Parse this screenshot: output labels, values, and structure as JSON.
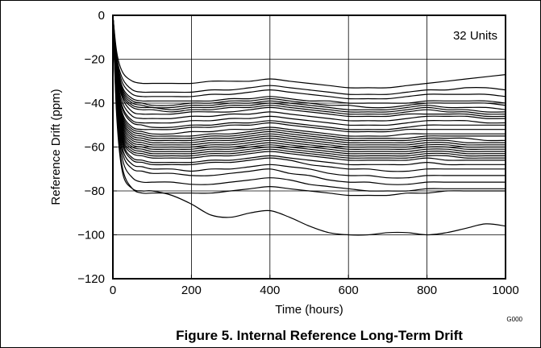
{
  "figure_caption": "Figure 5. Internal Reference Long-Term Drift",
  "graphic_code": "G000",
  "colors": {
    "line": "#000000",
    "grid": "#000000",
    "background": "#ffffff"
  },
  "chart_data": {
    "type": "line",
    "title": "",
    "xlabel": "Time (hours)",
    "ylabel": "Reference Drift (ppm)",
    "xlim": [
      0,
      1000
    ],
    "ylim": [
      -120,
      0
    ],
    "xticks": [
      0,
      200,
      400,
      600,
      800,
      1000
    ],
    "yticks": [
      0,
      -20,
      -40,
      -60,
      -80,
      -100,
      -120
    ],
    "grid": true,
    "legend": "none",
    "annotations": [
      {
        "text": "32 Units",
        "placement": "top-right"
      }
    ],
    "x": [
      0,
      10,
      25,
      50,
      75,
      100,
      150,
      200,
      250,
      300,
      350,
      400,
      450,
      500,
      550,
      600,
      650,
      700,
      750,
      800,
      850,
      900,
      950,
      1000
    ],
    "series": [
      {
        "values": [
          0,
          -17,
          -26,
          -30,
          -31,
          -31,
          -31,
          -31,
          -30,
          -30,
          -30,
          -29,
          -30,
          -31,
          -32,
          -33,
          -33,
          -33,
          -32,
          -31,
          -30,
          -29,
          -28,
          -27
        ]
      },
      {
        "values": [
          0,
          -19,
          -29,
          -34,
          -35,
          -35,
          -35,
          -35,
          -34,
          -34,
          -33,
          -32,
          -33,
          -34,
          -35,
          -36,
          -36,
          -36,
          -35,
          -34,
          -34,
          -33,
          -33,
          -34
        ]
      },
      {
        "values": [
          0,
          -20,
          -31,
          -36,
          -37,
          -37,
          -37,
          -37,
          -36,
          -36,
          -35,
          -34,
          -35,
          -36,
          -37,
          -38,
          -38,
          -38,
          -37,
          -36,
          -36,
          -36,
          -36,
          -37
        ]
      },
      {
        "values": [
          0,
          -21,
          -33,
          -38,
          -39,
          -39,
          -39,
          -39,
          -39,
          -38,
          -38,
          -37,
          -38,
          -39,
          -39,
          -40,
          -40,
          -40,
          -40,
          -39,
          -39,
          -39,
          -39,
          -40
        ]
      },
      {
        "values": [
          0,
          -22,
          -34,
          -39,
          -40,
          -41,
          -41,
          -40,
          -40,
          -39,
          -39,
          -38,
          -39,
          -40,
          -41,
          -41,
          -42,
          -42,
          -41,
          -40,
          -40,
          -40,
          -40,
          -41
        ]
      },
      {
        "values": [
          0,
          -23,
          -35,
          -40,
          -41,
          -42,
          -42,
          -41,
          -41,
          -40,
          -40,
          -39,
          -40,
          -41,
          -42,
          -43,
          -43,
          -43,
          -42,
          -41,
          -42,
          -42,
          -42,
          -43
        ]
      },
      {
        "values": [
          0,
          -24,
          -36,
          -41,
          -42,
          -42,
          -43,
          -42,
          -42,
          -41,
          -41,
          -40,
          -41,
          -42,
          -43,
          -44,
          -44,
          -44,
          -43,
          -42,
          -43,
          -43,
          -44,
          -44
        ]
      },
      {
        "values": [
          0,
          -25,
          -37,
          -42,
          -43,
          -43,
          -44,
          -43,
          -43,
          -42,
          -42,
          -41,
          -42,
          -43,
          -44,
          -45,
          -45,
          -45,
          -44,
          -43,
          -44,
          -44,
          -45,
          -45
        ]
      },
      {
        "values": [
          0,
          -26,
          -38,
          -44,
          -45,
          -45,
          -45,
          -44,
          -44,
          -44,
          -43,
          -42,
          -43,
          -44,
          -45,
          -46,
          -46,
          -46,
          -45,
          -45,
          -45,
          -45,
          -46,
          -46
        ]
      },
      {
        "values": [
          0,
          -27,
          -40,
          -46,
          -47,
          -47,
          -47,
          -46,
          -46,
          -45,
          -45,
          -44,
          -45,
          -46,
          -47,
          -48,
          -48,
          -48,
          -47,
          -46,
          -46,
          -46,
          -47,
          -47
        ]
      },
      {
        "values": [
          0,
          -28,
          -42,
          -48,
          -49,
          -49,
          -49,
          -48,
          -48,
          -47,
          -47,
          -46,
          -47,
          -48,
          -49,
          -50,
          -50,
          -50,
          -49,
          -48,
          -48,
          -48,
          -49,
          -49
        ]
      },
      {
        "values": [
          0,
          -29,
          -43,
          -49,
          -50,
          -51,
          -51,
          -50,
          -50,
          -49,
          -49,
          -48,
          -49,
          -50,
          -51,
          -52,
          -52,
          -52,
          -51,
          -50,
          -50,
          -50,
          -50,
          -50
        ]
      },
      {
        "values": [
          0,
          -30,
          -45,
          -51,
          -52,
          -52,
          -52,
          -51,
          -51,
          -50,
          -50,
          -49,
          -50,
          -51,
          -52,
          -53,
          -53,
          -53,
          -52,
          -52,
          -52,
          -52,
          -52,
          -52
        ]
      },
      {
        "values": [
          0,
          -31,
          -46,
          -52,
          -53,
          -54,
          -54,
          -53,
          -53,
          -52,
          -52,
          -51,
          -52,
          -53,
          -54,
          -55,
          -55,
          -55,
          -54,
          -54,
          -54,
          -54,
          -54,
          -54
        ]
      },
      {
        "values": [
          0,
          -31,
          -47,
          -53,
          -54,
          -55,
          -55,
          -55,
          -54,
          -54,
          -53,
          -52,
          -53,
          -54,
          -55,
          -56,
          -56,
          -56,
          -56,
          -55,
          -55,
          -55,
          -55,
          -55
        ]
      },
      {
        "values": [
          0,
          -32,
          -48,
          -54,
          -55,
          -56,
          -56,
          -56,
          -55,
          -55,
          -54,
          -53,
          -54,
          -55,
          -56,
          -57,
          -57,
          -57,
          -57,
          -56,
          -56,
          -56,
          -57,
          -57
        ]
      },
      {
        "values": [
          0,
          -33,
          -49,
          -55,
          -56,
          -57,
          -57,
          -57,
          -56,
          -56,
          -55,
          -54,
          -55,
          -56,
          -57,
          -58,
          -58,
          -58,
          -58,
          -57,
          -57,
          -58,
          -58,
          -58
        ]
      },
      {
        "values": [
          0,
          -33,
          -50,
          -56,
          -57,
          -58,
          -58,
          -58,
          -57,
          -57,
          -56,
          -55,
          -56,
          -57,
          -58,
          -59,
          -59,
          -59,
          -59,
          -58,
          -58,
          -59,
          -59,
          -59
        ]
      },
      {
        "values": [
          0,
          -34,
          -51,
          -57,
          -58,
          -59,
          -59,
          -59,
          -58,
          -58,
          -57,
          -56,
          -57,
          -58,
          -59,
          -60,
          -60,
          -60,
          -60,
          -59,
          -59,
          -60,
          -60,
          -60
        ]
      },
      {
        "values": [
          0,
          -34,
          -52,
          -58,
          -59,
          -60,
          -60,
          -60,
          -59,
          -59,
          -58,
          -57,
          -58,
          -59,
          -60,
          -61,
          -61,
          -61,
          -61,
          -60,
          -60,
          -61,
          -61,
          -61
        ]
      },
      {
        "values": [
          0,
          -35,
          -53,
          -59,
          -60,
          -61,
          -61,
          -61,
          -60,
          -60,
          -59,
          -58,
          -59,
          -60,
          -61,
          -62,
          -62,
          -62,
          -62,
          -61,
          -61,
          -62,
          -62,
          -62
        ]
      },
      {
        "values": [
          0,
          -35,
          -54,
          -60,
          -61,
          -62,
          -62,
          -62,
          -61,
          -61,
          -60,
          -59,
          -60,
          -61,
          -62,
          -63,
          -63,
          -63,
          -63,
          -62,
          -62,
          -63,
          -63,
          -63
        ]
      },
      {
        "values": [
          0,
          -36,
          -55,
          -61,
          -62,
          -63,
          -63,
          -63,
          -62,
          -62,
          -61,
          -60,
          -61,
          -62,
          -63,
          -64,
          -64,
          -64,
          -64,
          -63,
          -63,
          -64,
          -64,
          -64
        ]
      },
      {
        "values": [
          0,
          -36,
          -56,
          -62,
          -63,
          -64,
          -64,
          -64,
          -63,
          -63,
          -62,
          -61,
          -62,
          -63,
          -64,
          -65,
          -65,
          -65,
          -65,
          -64,
          -64,
          -65,
          -65,
          -65
        ]
      },
      {
        "values": [
          0,
          -37,
          -57,
          -63,
          -64,
          -65,
          -65,
          -65,
          -64,
          -64,
          -63,
          -62,
          -63,
          -64,
          -65,
          -66,
          -66,
          -66,
          -66,
          -65,
          -66,
          -66,
          -66,
          -66
        ]
      },
      {
        "values": [
          0,
          -38,
          -58,
          -65,
          -66,
          -67,
          -67,
          -67,
          -66,
          -66,
          -65,
          -64,
          -65,
          -66,
          -67,
          -68,
          -68,
          -68,
          -68,
          -67,
          -68,
          -68,
          -68,
          -68
        ]
      },
      {
        "values": [
          0,
          -39,
          -59,
          -66,
          -67,
          -68,
          -68,
          -68,
          -67,
          -67,
          -66,
          -65,
          -66,
          -68,
          -69,
          -70,
          -70,
          -71,
          -71,
          -70,
          -70,
          -70,
          -70,
          -70
        ]
      },
      {
        "values": [
          0,
          -40,
          -61,
          -68,
          -69,
          -70,
          -70,
          -71,
          -70,
          -70,
          -69,
          -68,
          -69,
          -70,
          -72,
          -73,
          -73,
          -74,
          -74,
          -73,
          -73,
          -73,
          -73,
          -73
        ]
      },
      {
        "values": [
          0,
          -41,
          -63,
          -70,
          -71,
          -72,
          -72,
          -73,
          -73,
          -72,
          -71,
          -70,
          -72,
          -73,
          -75,
          -76,
          -76,
          -77,
          -77,
          -76,
          -76,
          -76,
          -76,
          -76
        ]
      },
      {
        "values": [
          0,
          -43,
          -66,
          -74,
          -76,
          -76,
          -76,
          -77,
          -77,
          -76,
          -75,
          -74,
          -75,
          -77,
          -78,
          -79,
          -80,
          -80,
          -80,
          -79,
          -79,
          -79,
          -79,
          -79
        ]
      },
      {
        "values": [
          0,
          -45,
          -70,
          -79,
          -81,
          -81,
          -81,
          -81,
          -81,
          -80,
          -79,
          -78,
          -79,
          -80,
          -81,
          -82,
          -82,
          -82,
          -81,
          -81,
          -80,
          -80,
          -80,
          -80
        ]
      },
      {
        "values": [
          0,
          -47,
          -72,
          -79,
          -80,
          -80,
          -82,
          -86,
          -91,
          -92,
          -90,
          -89,
          -92,
          -96,
          -99,
          -100,
          -100,
          -99,
          -99,
          -100,
          -99,
          -97,
          -95,
          -96
        ]
      }
    ]
  }
}
